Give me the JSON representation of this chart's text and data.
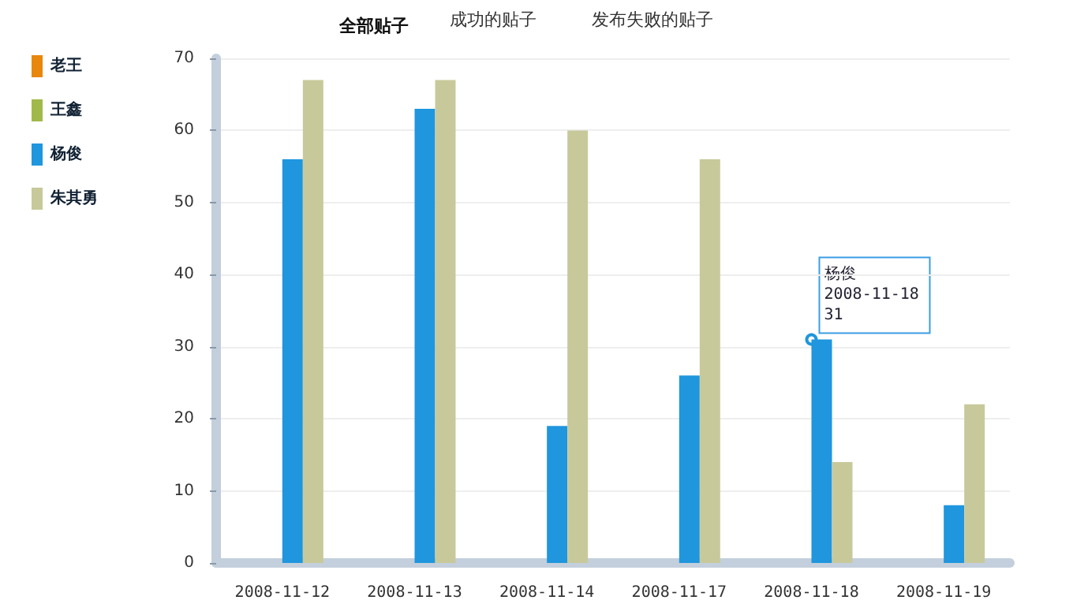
{
  "chart_data": {
    "type": "bar",
    "title": "全部贴子",
    "annotations": [
      "成功的贴子",
      "发布失败的贴子",
      {
        "text": "杨俊\n2008-11-18\n31",
        "x": "2008-11-18",
        "y": 31
      }
    ],
    "categories": [
      "2008-11-12",
      "2008-11-13",
      "2008-11-14",
      "2008-11-17",
      "2008-11-18",
      "2008-11-19"
    ],
    "series": [
      {
        "name": "老王",
        "color": "#e8870c",
        "values": [
          null,
          null,
          null,
          null,
          null,
          null
        ]
      },
      {
        "name": "王鑫",
        "color": "#a1b94b",
        "values": [
          null,
          null,
          null,
          null,
          null,
          null
        ]
      },
      {
        "name": "杨俊",
        "color": "#1f96dd",
        "values": [
          56,
          63,
          19,
          26,
          31,
          8
        ]
      },
      {
        "name": "朱其勇",
        "color": "#c8c99b",
        "values": [
          67,
          67,
          60,
          56,
          14,
          22
        ]
      }
    ],
    "ylim": [
      0,
      70
    ],
    "yticks": [
      0,
      10,
      20,
      30,
      40,
      50,
      60,
      70
    ],
    "grid": "y",
    "legend": "left"
  }
}
